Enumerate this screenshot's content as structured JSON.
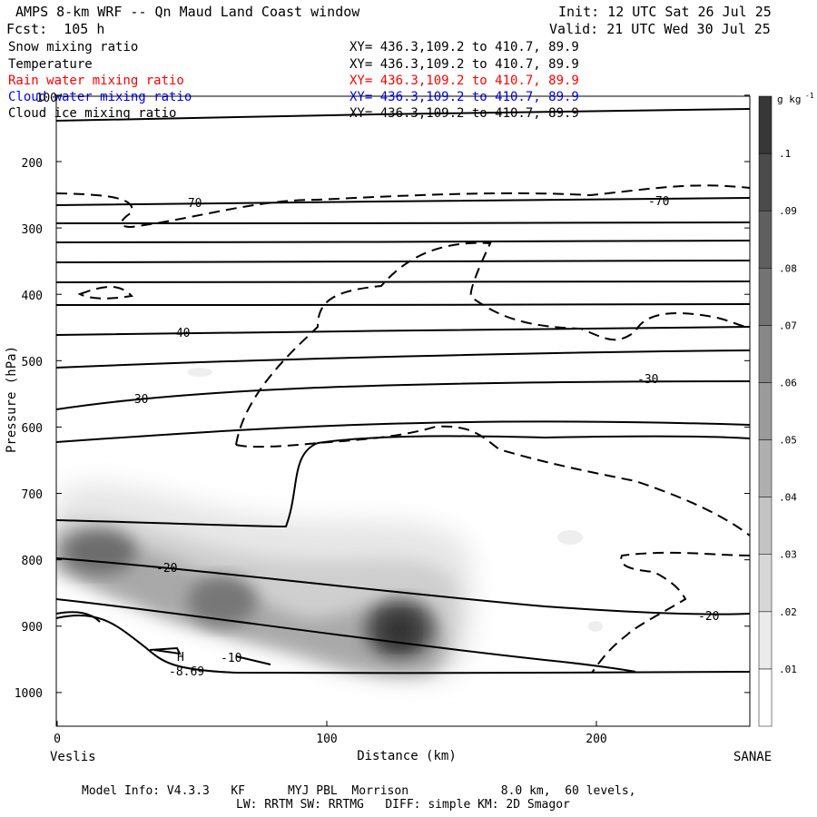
{
  "header": {
    "title": "AMPS 8-km WRF -- Qn Maud Land Coast window",
    "init": "Init: 12 UTC Sat 26 Jul 25",
    "forecast": "Fcst:  105 h",
    "valid": "Valid: 21 UTC Wed 30 Jul 25"
  },
  "fields": [
    {
      "name": "Snow mixing ratio",
      "xy": "XY= 436.3,109.2 to 410.7, 89.9",
      "color": "#000000"
    },
    {
      "name": "Temperature",
      "xy": "XY= 436.3,109.2 to 410.7, 89.9",
      "color": "#000000"
    },
    {
      "name": "Rain water mixing ratio",
      "xy": "XY= 436.3,109.2 to 410.7, 89.9",
      "color": "#ff0000"
    },
    {
      "name": "Cloud water mixing ratio",
      "xy": "XY= 436.3,109.2 to 410.7, 89.9",
      "color": "#0000ff"
    },
    {
      "name": "Cloud ice mixing ratio",
      "xy": "XY= 436.3,109.2 to 410.7, 89.9",
      "color": "#000000"
    }
  ],
  "footer": {
    "line1": "Model Info: V4.3.3   KF      MYJ PBL  Morrison             8.0 km,  60 levels,",
    "line2": "LW: RRTM SW: RRTMG   DIFF: simple KM: 2D Smagor"
  },
  "chart_data": {
    "type": "heatmap",
    "xlabel": "Distance (km)",
    "ylabel": "Pressure (hPa)",
    "xlim": [
      0,
      258
    ],
    "ylim": [
      1050,
      100
    ],
    "x_ticks": [
      "0",
      "100",
      "200"
    ],
    "y_ticks": [
      "100",
      "200",
      "300",
      "400",
      "500",
      "600",
      "700",
      "800",
      "900",
      "1000"
    ],
    "left_endpoint": "Veslis",
    "right_endpoint": "SANAE",
    "colorbar": {
      "unit": "g kg",
      "unit_exp": "-1",
      "ticks": [
        ".01",
        ".02",
        ".03",
        ".04",
        ".05",
        ".06",
        ".07",
        ".08",
        ".09",
        ".1"
      ]
    },
    "shaded_field": "Snow mixing ratio",
    "snow_maxima": [
      {
        "x": 15,
        "p": 800,
        "value": 0.08
      },
      {
        "x": 60,
        "p": 870,
        "value": 0.075
      },
      {
        "x": 127,
        "p": 910,
        "value": 0.095
      }
    ],
    "temperature_contour_labels": [
      {
        "text": "-70",
        "x": 50,
        "p": 250
      },
      {
        "text": "-70",
        "x": 232,
        "p": 248
      },
      {
        "text": "-40",
        "x": 45,
        "p": 455
      },
      {
        "text": "-30",
        "x": 29,
        "p": 555
      },
      {
        "text": "-30",
        "x": 219,
        "p": 530
      },
      {
        "text": "-20",
        "x": 40,
        "p": 815
      },
      {
        "text": "-20",
        "x": 240,
        "p": 887
      },
      {
        "text": "-10",
        "x": 65,
        "p": 950
      },
      {
        "text": "-8.69",
        "x": 50,
        "p": 971
      },
      {
        "text": "H",
        "x": 46,
        "p": 950
      }
    ]
  }
}
